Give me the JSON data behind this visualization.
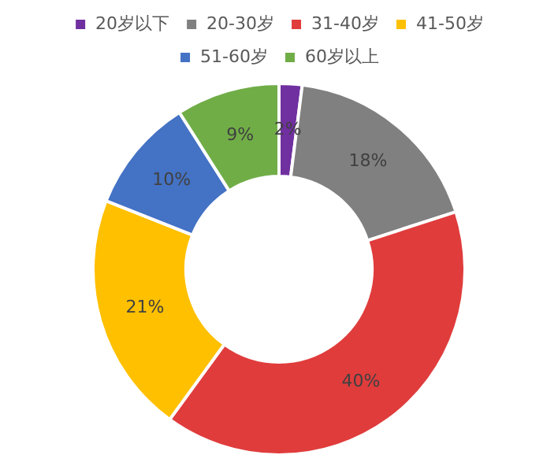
{
  "chart_data": {
    "type": "donut",
    "categories": [
      "20岁以下",
      "20-30岁",
      "31-40岁",
      "41-50岁",
      "51-60岁",
      "60岁以上"
    ],
    "values": [
      2,
      18,
      40,
      21,
      10,
      9
    ],
    "colors": [
      "#7030a0",
      "#808080",
      "#e03c3c",
      "#ffc000",
      "#4472c4",
      "#70ad47"
    ],
    "value_labels": [
      "2%",
      "18%",
      "40%",
      "21%",
      "10%",
      "9%"
    ],
    "legend": "top"
  }
}
